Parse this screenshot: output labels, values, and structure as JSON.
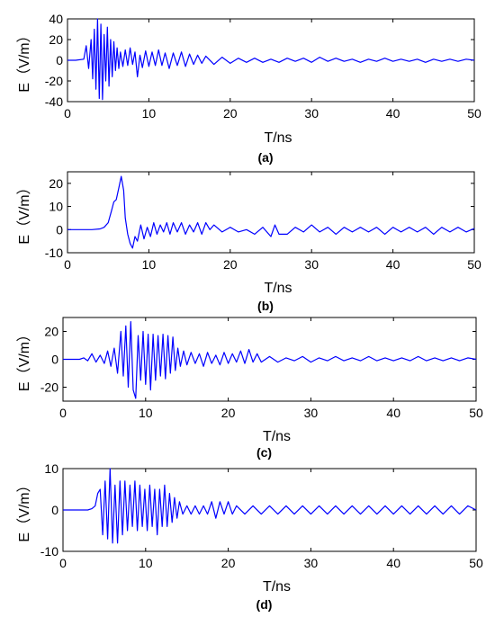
{
  "chart_data": [
    {
      "type": "line",
      "panel_label": "(a)",
      "xlabel": "T/ns",
      "ylabel": "E（V/m）",
      "xlim": [
        0,
        50
      ],
      "ylim": [
        -40,
        40
      ],
      "xticks": [
        0,
        10,
        20,
        30,
        40,
        50
      ],
      "yticks": [
        -40,
        -20,
        0,
        20,
        40
      ],
      "line_color": "#0000ff",
      "grid": false,
      "series": [
        {
          "x": [
            0,
            1,
            2,
            2.3,
            2.6,
            2.9,
            3.1,
            3.3,
            3.5,
            3.7,
            3.9,
            4.1,
            4.3,
            4.5,
            4.7,
            4.9,
            5.1,
            5.3,
            5.5,
            5.7,
            5.9,
            6.1,
            6.3,
            6.5,
            6.8,
            7.1,
            7.4,
            7.7,
            8,
            8.3,
            8.6,
            8.9,
            9.2,
            9.6,
            10,
            10.4,
            10.8,
            11.2,
            11.6,
            12,
            12.5,
            13,
            13.5,
            14,
            14.5,
            15,
            15.5,
            16,
            16.5,
            17,
            18,
            19,
            20,
            21,
            22,
            23,
            24,
            25,
            26,
            27,
            28,
            29,
            30,
            31,
            32,
            33,
            34,
            35,
            36,
            37,
            38,
            39,
            40,
            41,
            42,
            43,
            44,
            45,
            46,
            47,
            48,
            49,
            50
          ],
          "y": [
            0,
            0,
            1,
            14,
            -8,
            20,
            -18,
            30,
            -28,
            40,
            -37,
            35,
            -38,
            25,
            -20,
            32,
            -25,
            20,
            -16,
            18,
            -10,
            12,
            -8,
            8,
            -6,
            10,
            -5,
            12,
            -4,
            8,
            -16,
            5,
            -7,
            9,
            -6,
            8,
            -5,
            10,
            -5,
            7,
            -8,
            7,
            -5,
            8,
            -6,
            6,
            -4,
            5,
            -3,
            4,
            -4,
            3,
            -3,
            2,
            -2,
            2,
            -2,
            1,
            -2,
            2,
            -1,
            2,
            -2,
            3,
            -1,
            2,
            -1,
            1,
            -2,
            1,
            -1,
            2,
            -1,
            1,
            -1,
            1,
            -2,
            1,
            -1,
            1,
            -1,
            1,
            0
          ]
        }
      ]
    },
    {
      "type": "line",
      "panel_label": "(b)",
      "xlabel": "T/ns",
      "ylabel": "E（V/m）",
      "xlim": [
        0,
        50
      ],
      "ylim": [
        -10,
        25
      ],
      "xticks": [
        0,
        10,
        20,
        30,
        40,
        50
      ],
      "yticks": [
        -10,
        0,
        10,
        20
      ],
      "line_color": "#0000ff",
      "grid": false,
      "series": [
        {
          "x": [
            0,
            1,
            2,
            3,
            4,
            4.5,
            5,
            5.4,
            5.7,
            6,
            6.3,
            6.6,
            6.9,
            7.1,
            7.4,
            7.7,
            8,
            8.3,
            8.6,
            9,
            9.4,
            9.8,
            10.2,
            10.6,
            11,
            11.4,
            11.8,
            12.2,
            12.6,
            13,
            13.5,
            14,
            14.5,
            15,
            15.5,
            16,
            16.5,
            17,
            17.5,
            18,
            19,
            20,
            21,
            22,
            23,
            24,
            25,
            25.5,
            26,
            27,
            28,
            29,
            30,
            31,
            32,
            33,
            34,
            35,
            36,
            37,
            38,
            39,
            40,
            41,
            42,
            43,
            44,
            45,
            46,
            47,
            48,
            49,
            50
          ],
          "y": [
            0,
            0,
            0,
            0,
            0.3,
            1,
            3,
            8,
            12,
            13,
            18,
            23,
            17,
            5,
            -2,
            -6,
            -8,
            -3,
            -5,
            2,
            -4,
            1,
            -3,
            3,
            -2,
            2,
            -1,
            3,
            -2,
            3,
            -1,
            3,
            -2,
            2,
            -1,
            3,
            -2,
            3,
            0,
            2,
            -1,
            1,
            -1,
            0,
            -2,
            1,
            -3,
            2,
            -2,
            -2,
            1,
            -1,
            2,
            -1,
            1,
            -2,
            1,
            -1,
            1,
            -1,
            1,
            -2,
            1,
            -1,
            1,
            -1,
            1,
            -2,
            1,
            -1,
            1,
            -1,
            0.5
          ]
        }
      ]
    },
    {
      "type": "line",
      "panel_label": "(c)",
      "xlabel": "T/ns",
      "ylabel": "E（V/m）",
      "xlim": [
        0,
        50
      ],
      "ylim": [
        -30,
        30
      ],
      "xticks": [
        0,
        10,
        20,
        30,
        40,
        50
      ],
      "yticks": [
        -20,
        0,
        20
      ],
      "line_color": "#0000ff",
      "grid": false,
      "series": [
        {
          "x": [
            0,
            1,
            2,
            2.5,
            3,
            3.5,
            4,
            4.5,
            5,
            5.4,
            5.8,
            6.2,
            6.6,
            7,
            7.3,
            7.6,
            7.9,
            8.2,
            8.5,
            8.8,
            9.1,
            9.4,
            9.7,
            10,
            10.3,
            10.6,
            10.9,
            11.2,
            11.5,
            11.8,
            12.1,
            12.4,
            12.7,
            13,
            13.3,
            13.6,
            13.9,
            14.2,
            14.6,
            15,
            15.5,
            16,
            16.5,
            17,
            17.5,
            18,
            18.5,
            19,
            19.5,
            20,
            20.5,
            21,
            21.5,
            22,
            22.5,
            23,
            23.5,
            24,
            25,
            26,
            27,
            28,
            29,
            30,
            31,
            32,
            33,
            34,
            35,
            36,
            37,
            38,
            39,
            40,
            41,
            42,
            43,
            44,
            45,
            46,
            47,
            48,
            49,
            50
          ],
          "y": [
            0,
            0,
            0,
            1,
            -1,
            4,
            -2,
            3,
            -3,
            6,
            -5,
            8,
            -10,
            20,
            -12,
            24,
            -20,
            27,
            -22,
            -28,
            17,
            -15,
            20,
            -18,
            18,
            -22,
            18,
            -15,
            17,
            -12,
            18,
            -14,
            17,
            -10,
            16,
            -8,
            8,
            -5,
            6,
            -4,
            5,
            -3,
            4,
            -5,
            5,
            -3,
            3,
            -4,
            5,
            -3,
            4,
            -2,
            6,
            -3,
            7,
            -2,
            4,
            -2,
            2,
            -2,
            1,
            -1,
            2,
            -2,
            1,
            -1,
            2,
            -1,
            1,
            -1,
            2,
            -1,
            1,
            -1,
            1,
            -1,
            2,
            -1,
            1,
            -1,
            1,
            -1,
            1,
            0
          ]
        }
      ]
    },
    {
      "type": "line",
      "panel_label": "(d)",
      "xlabel": "T/ns",
      "ylabel": "E（V/m）",
      "xlim": [
        0,
        50
      ],
      "ylim": [
        -10,
        10
      ],
      "xticks": [
        0,
        10,
        20,
        30,
        40,
        50
      ],
      "yticks": [
        -10,
        0,
        10
      ],
      "line_color": "#0000ff",
      "grid": false,
      "series": [
        {
          "x": [
            0,
            1,
            2,
            3,
            3.5,
            3.9,
            4.2,
            4.5,
            4.8,
            5.1,
            5.4,
            5.7,
            6,
            6.3,
            6.6,
            6.9,
            7.2,
            7.5,
            7.8,
            8.1,
            8.4,
            8.7,
            9,
            9.3,
            9.6,
            9.9,
            10.2,
            10.5,
            10.8,
            11.1,
            11.4,
            11.7,
            12,
            12.3,
            12.6,
            12.9,
            13.2,
            13.5,
            13.8,
            14.1,
            14.5,
            15,
            15.5,
            16,
            16.5,
            17,
            17.5,
            18,
            18.5,
            19,
            19.5,
            20,
            20.5,
            21,
            22,
            23,
            24,
            25,
            26,
            27,
            28,
            29,
            30,
            31,
            32,
            33,
            34,
            35,
            36,
            37,
            38,
            39,
            40,
            41,
            42,
            43,
            44,
            45,
            46,
            47,
            48,
            49,
            50
          ],
          "y": [
            0,
            0,
            0,
            0,
            0.3,
            1,
            4,
            5,
            -6,
            7,
            -7,
            10,
            -8,
            6,
            -8,
            7,
            -6,
            7,
            -5,
            6,
            -4,
            7,
            -5,
            6,
            -4,
            5,
            -5,
            6,
            -4,
            5,
            -6,
            5,
            -4,
            6,
            -4,
            4,
            -3,
            3,
            -2,
            2,
            -1,
            1,
            -1,
            1,
            -1,
            1,
            -1,
            2,
            -2,
            2,
            -1,
            2,
            -1,
            1,
            -1,
            1,
            -1,
            1,
            -1,
            1,
            -1,
            1,
            -1,
            1,
            -1,
            1,
            -1,
            1,
            -1,
            1,
            -1,
            1,
            -1,
            1,
            -1,
            1,
            -1,
            1,
            -1,
            1,
            -1,
            1,
            0
          ]
        }
      ]
    }
  ]
}
